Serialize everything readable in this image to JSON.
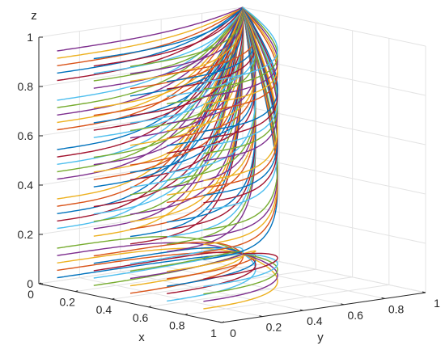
{
  "chart_data": {
    "type": "line",
    "subtype": "3d-line-family",
    "title": "",
    "xlabel": "x",
    "ylabel": "y",
    "zlabel": "z",
    "xlim": [
      0,
      1
    ],
    "ylim": [
      0,
      1
    ],
    "zlim": [
      0,
      1
    ],
    "xticks": [
      "0",
      "0.2",
      "0.4",
      "0.6",
      "0.8",
      "1"
    ],
    "yticks": [
      "0",
      "0.2",
      "0.4",
      "0.6",
      "0.8",
      "1"
    ],
    "zticks": [
      "0",
      "0.2",
      "0.4",
      "0.6",
      "0.8",
      "1"
    ],
    "grid": true,
    "legend": "none",
    "x_start_values": [
      0.1,
      0.3,
      0.5,
      0.7,
      0.9
    ],
    "z_start_values": [
      0.1,
      0.3,
      0.5,
      0.7,
      0.9
    ],
    "y_start": 0,
    "y_end": 1,
    "series_colors": [
      "#0072BD",
      "#D95319",
      "#EDB120",
      "#7E2F8E",
      "#77AC30",
      "#4DBEEE",
      "#A2142F"
    ]
  }
}
